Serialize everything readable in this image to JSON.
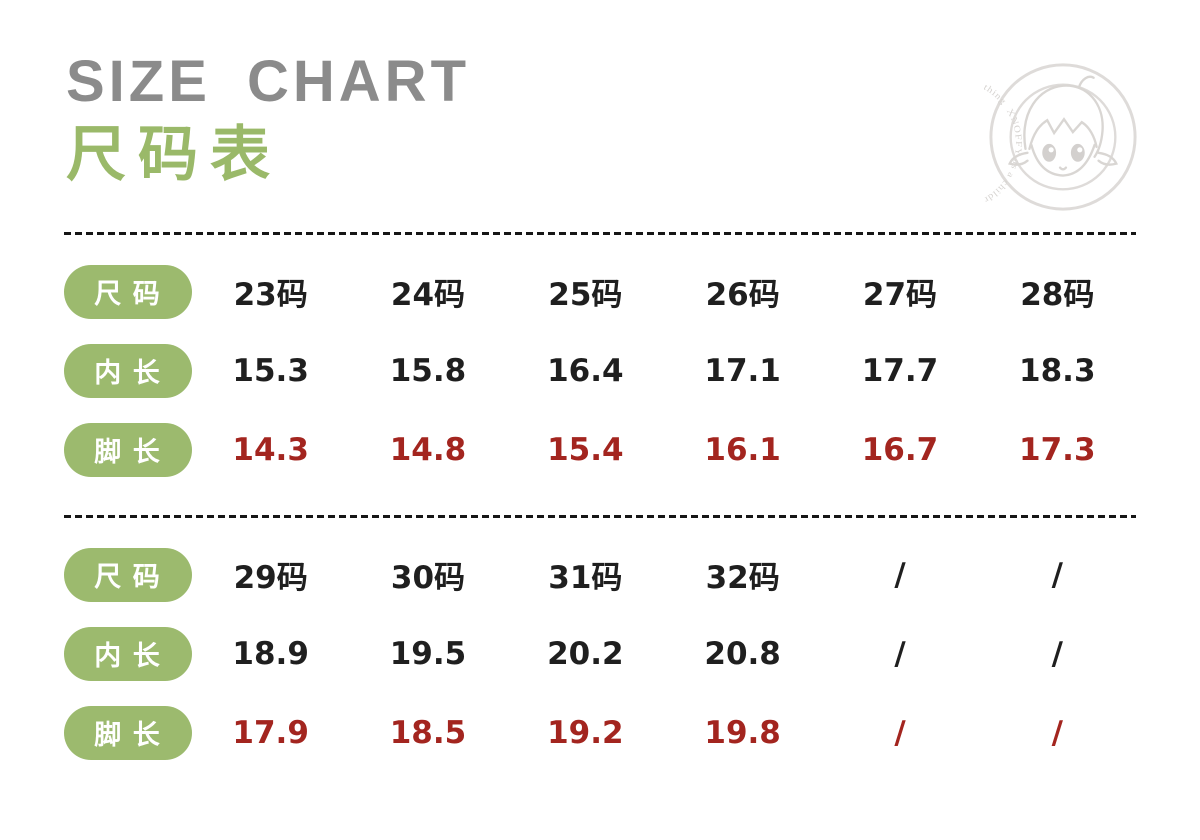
{
  "header": {
    "title_en": "SIZE CHART",
    "title_cn": "尺码表"
  },
  "stamp": {
    "ring_text": "XNOFFY as a children's shoe designer brand, aims to provide better clothing"
  },
  "colors": {
    "accent_green": "#9cba6e",
    "title_gray": "#8b8b8b",
    "value_red": "#a3251f",
    "text_black": "#1f1f1f",
    "stamp_gray": "#d8d5d2"
  },
  "chart_data": [
    {
      "type": "table",
      "rows": [
        {
          "label": "尺 码",
          "tone": "black",
          "values": [
            "23码",
            "24码",
            "25码",
            "26码",
            "27码",
            "28码"
          ]
        },
        {
          "label": "内 长",
          "tone": "black",
          "values": [
            "15.3",
            "15.8",
            "16.4",
            "17.1",
            "17.7",
            "18.3"
          ]
        },
        {
          "label": "脚 长",
          "tone": "red",
          "values": [
            "14.3",
            "14.8",
            "15.4",
            "16.1",
            "16.7",
            "17.3"
          ]
        }
      ]
    },
    {
      "type": "table",
      "rows": [
        {
          "label": "尺 码",
          "tone": "black",
          "values": [
            "29码",
            "30码",
            "31码",
            "32码",
            "/",
            "/"
          ]
        },
        {
          "label": "内 长",
          "tone": "black",
          "values": [
            "18.9",
            "19.5",
            "20.2",
            "20.8",
            "/",
            "/"
          ]
        },
        {
          "label": "脚 长",
          "tone": "red",
          "values": [
            "17.9",
            "18.5",
            "19.2",
            "19.8",
            "/",
            "/"
          ]
        }
      ]
    }
  ]
}
